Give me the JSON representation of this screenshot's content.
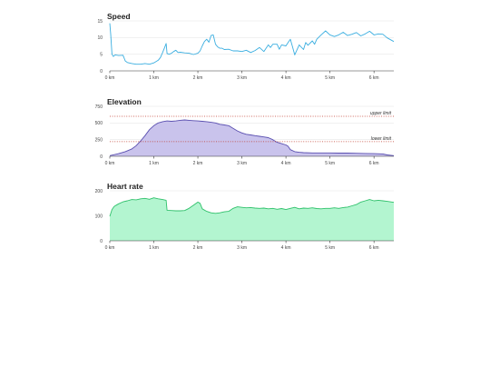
{
  "chart_data": [
    {
      "type": "line",
      "title": "Speed",
      "xlabel": "",
      "ylabel": "",
      "xlim": [
        0,
        6.45
      ],
      "ylim": [
        0,
        15
      ],
      "x_ticks": [
        "0 km",
        "1 km",
        "2 km",
        "3 km",
        "4 km",
        "5 km",
        "6 km"
      ],
      "y_ticks": [
        "0",
        "5",
        "10",
        "15"
      ],
      "grid": true,
      "color": "#3aaee0",
      "x": [
        0,
        0.02,
        0.05,
        0.08,
        0.12,
        0.2,
        0.3,
        0.35,
        0.4,
        0.5,
        0.6,
        0.7,
        0.8,
        0.9,
        1.0,
        1.1,
        1.15,
        1.2,
        1.25,
        1.28,
        1.3,
        1.35,
        1.4,
        1.45,
        1.5,
        1.55,
        1.6,
        1.7,
        1.8,
        1.9,
        2.0,
        2.05,
        2.1,
        2.15,
        2.2,
        2.25,
        2.3,
        2.35,
        2.4,
        2.45,
        2.5,
        2.55,
        2.6,
        2.7,
        2.8,
        2.9,
        3.0,
        3.1,
        3.2,
        3.3,
        3.4,
        3.5,
        3.6,
        3.65,
        3.7,
        3.8,
        3.85,
        3.9,
        4.0,
        4.05,
        4.1,
        4.15,
        4.2,
        4.3,
        4.4,
        4.45,
        4.5,
        4.6,
        4.65,
        4.7,
        4.8,
        4.9,
        5.0,
        5.1,
        5.2,
        5.3,
        5.4,
        5.5,
        5.6,
        5.7,
        5.8,
        5.9,
        6.0,
        6.1,
        6.2,
        6.3,
        6.45
      ],
      "values": [
        14.3,
        11.0,
        5.0,
        4.3,
        4.8,
        4.6,
        4.7,
        3.0,
        2.5,
        2.2,
        2.0,
        2.0,
        2.2,
        2.0,
        2.4,
        3.2,
        4.0,
        5.5,
        7.2,
        8.2,
        5.2,
        5.0,
        5.3,
        5.8,
        6.2,
        5.5,
        5.6,
        5.4,
        5.3,
        4.9,
        5.3,
        6.0,
        7.5,
        8.8,
        9.5,
        8.6,
        10.6,
        10.8,
        8.0,
        7.2,
        6.8,
        6.8,
        6.4,
        6.5,
        6.0,
        6.0,
        5.8,
        6.2,
        5.5,
        6.1,
        7.0,
        5.8,
        7.8,
        7.0,
        8.0,
        8.0,
        6.5,
        7.8,
        7.5,
        8.5,
        9.5,
        7.2,
        4.8,
        7.8,
        6.4,
        8.5,
        7.7,
        9.0,
        8.0,
        9.5,
        10.8,
        12.0,
        10.8,
        10.3,
        10.8,
        11.6,
        10.6,
        11.0,
        11.5,
        10.5,
        11.1,
        11.9,
        10.8,
        11.1,
        11.0,
        9.9,
        8.8
      ]
    },
    {
      "type": "area",
      "title": "Elevation",
      "xlabel": "",
      "ylabel": "",
      "xlim": [
        0,
        6.45
      ],
      "ylim": [
        0,
        750
      ],
      "x_ticks": [
        "0 km",
        "1 km",
        "2 km",
        "3 km",
        "4 km",
        "5 km",
        "6 km"
      ],
      "y_ticks": [
        "0",
        "250",
        "500",
        "750"
      ],
      "grid": true,
      "color": "#5a4fb0",
      "fill": "#c9c3ec",
      "limit_color": "#c0392b",
      "upper_limit": {
        "label": "upper limit",
        "value": 600
      },
      "lower_limit": {
        "label": "lower limit",
        "value": 220
      },
      "x": [
        0,
        0.2,
        0.35,
        0.5,
        0.6,
        0.7,
        0.8,
        0.9,
        1.0,
        1.1,
        1.2,
        1.3,
        1.4,
        1.5,
        1.6,
        1.7,
        1.8,
        1.9,
        2.0,
        2.1,
        2.2,
        2.3,
        2.4,
        2.5,
        2.6,
        2.7,
        2.8,
        2.9,
        3.0,
        3.1,
        3.2,
        3.3,
        3.4,
        3.5,
        3.6,
        3.7,
        3.8,
        3.9,
        4.0,
        4.05,
        4.1,
        4.2,
        4.3,
        4.4,
        4.6,
        4.8,
        5.0,
        5.2,
        5.4,
        5.6,
        5.8,
        6.0,
        6.2,
        6.3,
        6.45
      ],
      "values": [
        10,
        40,
        70,
        110,
        160,
        230,
        310,
        400,
        460,
        500,
        520,
        530,
        525,
        530,
        540,
        545,
        540,
        535,
        530,
        525,
        520,
        510,
        500,
        480,
        470,
        460,
        420,
        380,
        350,
        330,
        320,
        310,
        300,
        290,
        280,
        250,
        210,
        190,
        170,
        150,
        100,
        70,
        60,
        55,
        50,
        50,
        50,
        48,
        48,
        45,
        42,
        40,
        35,
        20,
        10
      ]
    },
    {
      "type": "area",
      "title": "Heart rate",
      "xlabel": "",
      "ylabel": "",
      "xlim": [
        0,
        6.45
      ],
      "ylim": [
        0,
        200
      ],
      "x_ticks": [
        "0 km",
        "1 km",
        "2 km",
        "3 km",
        "4 km",
        "5 km",
        "6 km"
      ],
      "y_ticks": [
        "0",
        "100",
        "200"
      ],
      "grid": true,
      "color": "#2fc16b",
      "fill": "#b3f5d0",
      "x": [
        0,
        0.05,
        0.1,
        0.2,
        0.3,
        0.4,
        0.5,
        0.6,
        0.7,
        0.8,
        0.9,
        1.0,
        1.1,
        1.2,
        1.28,
        1.3,
        1.4,
        1.5,
        1.6,
        1.7,
        1.8,
        1.9,
        2.0,
        2.05,
        2.1,
        2.2,
        2.3,
        2.4,
        2.5,
        2.6,
        2.7,
        2.8,
        2.9,
        3.0,
        3.1,
        3.2,
        3.3,
        3.4,
        3.5,
        3.6,
        3.7,
        3.8,
        3.9,
        4.0,
        4.1,
        4.2,
        4.3,
        4.4,
        4.5,
        4.6,
        4.7,
        4.8,
        4.9,
        5.0,
        5.1,
        5.2,
        5.3,
        5.4,
        5.5,
        5.6,
        5.7,
        5.8,
        5.9,
        6.0,
        6.1,
        6.2,
        6.3,
        6.45
      ],
      "values": [
        98,
        125,
        138,
        148,
        156,
        160,
        165,
        164,
        168,
        170,
        166,
        172,
        168,
        165,
        162,
        122,
        121,
        120,
        120,
        121,
        130,
        142,
        155,
        150,
        128,
        118,
        112,
        110,
        112,
        116,
        118,
        130,
        136,
        134,
        132,
        133,
        131,
        130,
        131,
        128,
        130,
        126,
        129,
        125,
        130,
        134,
        128,
        131,
        130,
        132,
        129,
        128,
        130,
        130,
        132,
        130,
        133,
        135,
        140,
        145,
        155,
        160,
        165,
        160,
        162,
        160,
        158,
        154
      ]
    }
  ]
}
